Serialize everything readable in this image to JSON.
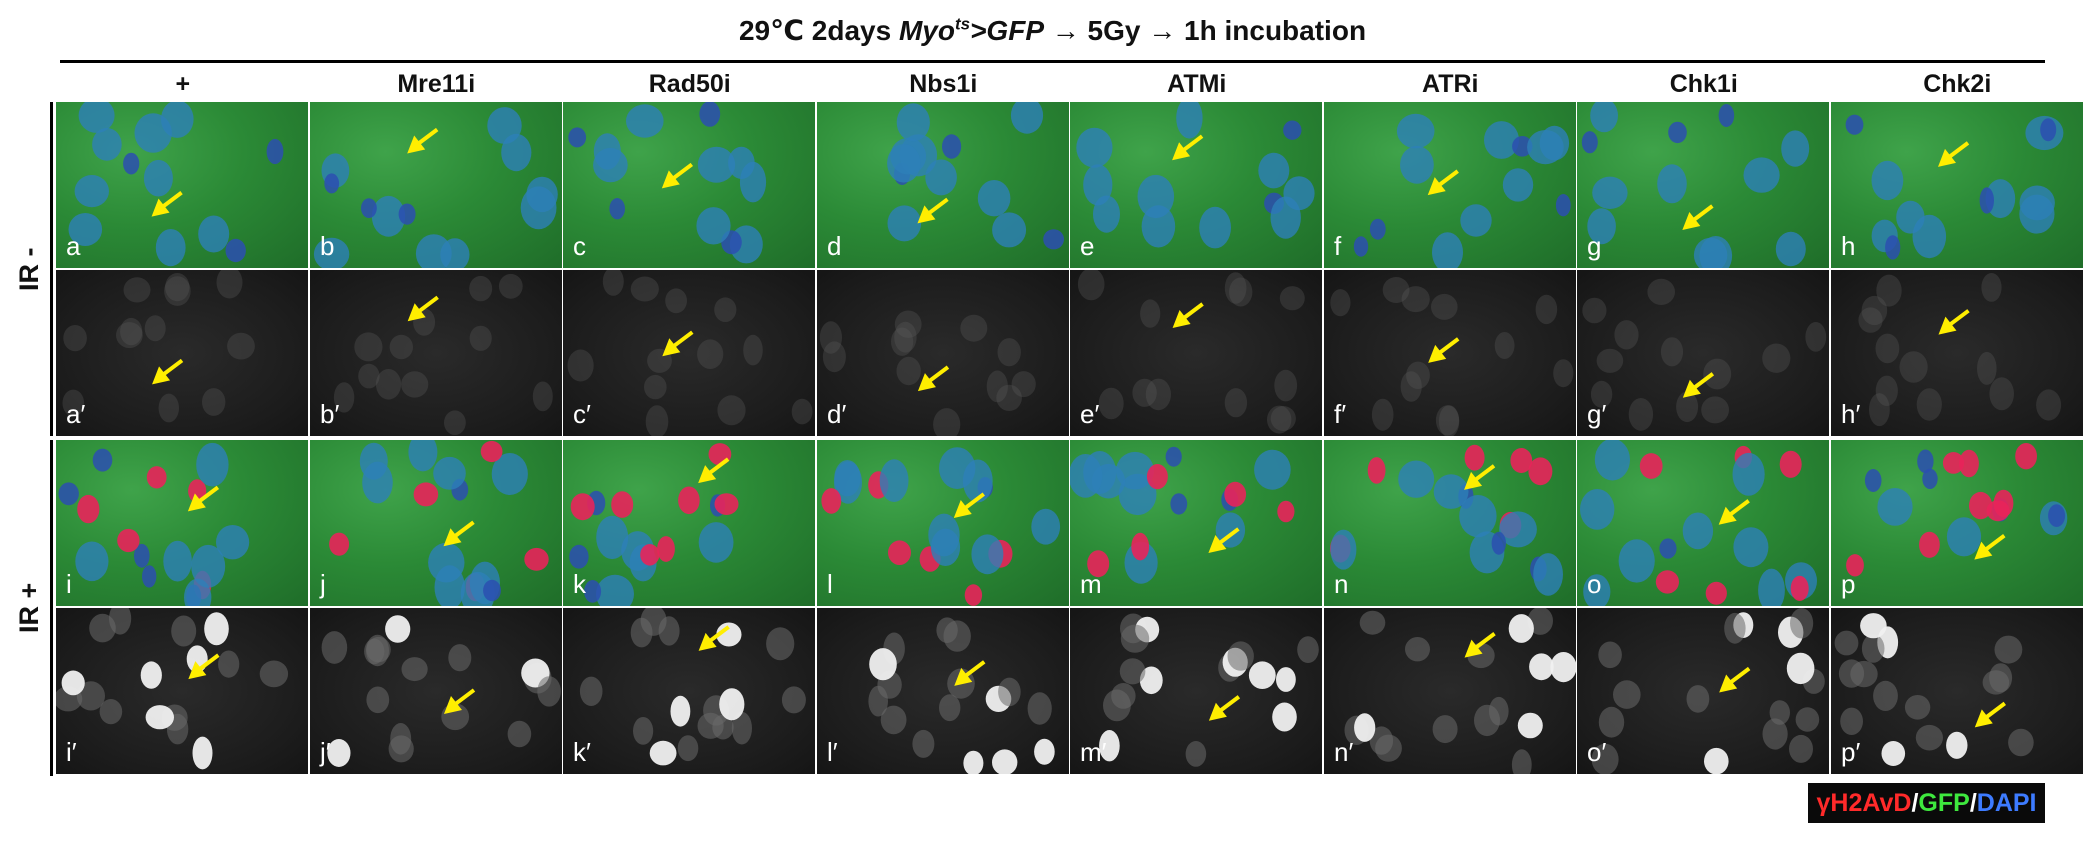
{
  "title": {
    "prefix": "29℃ 2days ",
    "driver": "Myo",
    "driver_superscript": "ts",
    "reporter": ">GFP",
    "rest": " → 5Gy → 1h incubation"
  },
  "columns": [
    "+",
    "Mre11i",
    "Rad50i",
    "Nbs1i",
    "ATMi",
    "ATRi",
    "Chk1i",
    "Chk2i"
  ],
  "row_groups": [
    "IR -",
    "IR +"
  ],
  "panel_letters": {
    "row1": [
      "a",
      "b",
      "c",
      "d",
      "e",
      "f",
      "g",
      "h"
    ],
    "row2": [
      "a′",
      "b′",
      "c′",
      "d′",
      "e′",
      "f′",
      "g′",
      "h′"
    ],
    "row3": [
      "i",
      "j",
      "k",
      "l",
      "m",
      "n",
      "o",
      "p"
    ],
    "row4": [
      "i′",
      "j′",
      "k′",
      "l′",
      "m′",
      "n′",
      "o′",
      "p′"
    ]
  },
  "legend": {
    "red": "γH2AvD",
    "green": "GFP",
    "blue": "DAPI",
    "separator": "/"
  },
  "colors": {
    "arrow": "#ffee00",
    "gfp": "#2b8a36",
    "dapi": "#2d7fb8",
    "h2av": "#e8245a"
  }
}
